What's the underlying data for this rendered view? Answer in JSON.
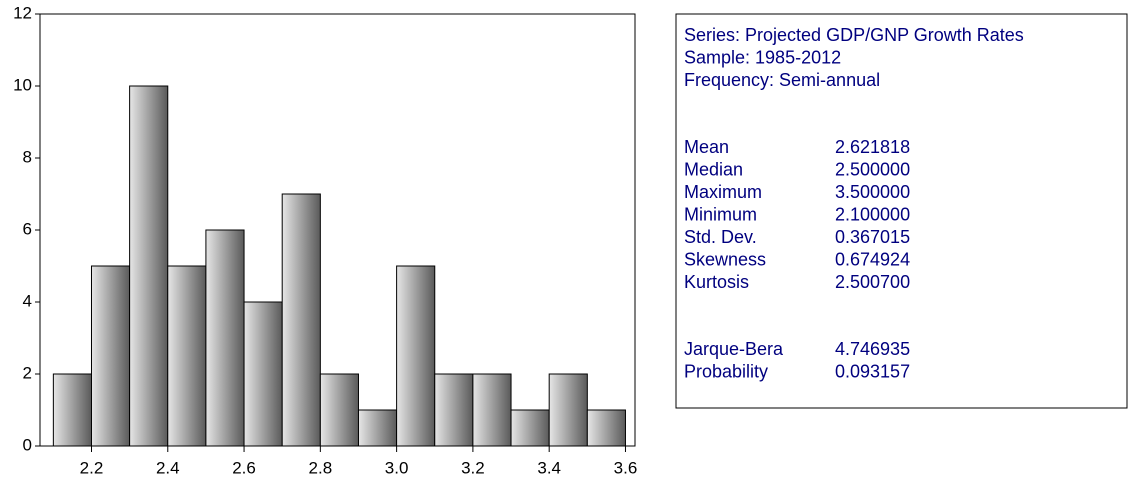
{
  "chart_data": {
    "type": "histogram",
    "bins": [
      2.1,
      2.2,
      2.3,
      2.4,
      2.5,
      2.6,
      2.7,
      2.8,
      2.9,
      3.0,
      3.1,
      3.2,
      3.3,
      3.4,
      3.5,
      3.6
    ],
    "values": [
      2,
      5,
      10,
      5,
      6,
      4,
      7,
      2,
      1,
      5,
      2,
      2,
      1,
      2,
      1
    ],
    "xlim": [
      2.065,
      3.625
    ],
    "xticks": [
      2.2,
      2.4,
      2.6,
      2.8,
      {
        "value": 3,
        "label": "3.0"
      },
      3.2,
      3.4,
      3.6
    ],
    "ylim": [
      0,
      12
    ],
    "yticks": [
      0,
      2,
      4,
      6,
      8,
      10,
      12
    ],
    "stats": {
      "header": [
        "Series: Projected GDP/GNP Growth Rates",
        "Sample: 1985-2012",
        "Frequency: Semi-annual"
      ],
      "rows": [
        [
          "Mean",
          "2.621818"
        ],
        [
          "Median",
          "2.500000"
        ],
        [
          "Maximum",
          "3.500000"
        ],
        [
          "Minimum",
          "2.100000"
        ],
        [
          "Std. Dev.",
          "0.367015"
        ],
        [
          "Skewness",
          "0.674924"
        ],
        [
          "Kurtosis",
          "2.500700"
        ]
      ],
      "tests": [
        [
          "Jarque-Bera",
          "4.746935"
        ],
        [
          "Probability",
          "0.093157"
        ]
      ]
    }
  }
}
